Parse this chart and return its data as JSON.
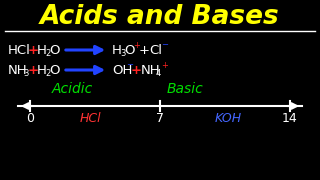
{
  "bg_color": "#000000",
  "title": "Acids and Bases",
  "title_color": "#FFFF00",
  "title_fontsize": 19,
  "line_color": "#FFFFFF",
  "acidic_label": "Acidic",
  "acidic_color": "#00DD00",
  "basic_label": "Basic",
  "basic_color": "#00DD00",
  "ph0_label": "0",
  "ph7_label": "7",
  "ph14_label": "14",
  "hcl_label": "HCl",
  "hcl_color": "#FF3333",
  "koh_label": "KOH",
  "koh_color": "#4466FF",
  "arrow_color": "#2244FF",
  "plus_color": "#FF2222",
  "white": "#FFFFFF",
  "sup_plus_color": "#FF2222",
  "sup_minus_color": "#2244FF"
}
